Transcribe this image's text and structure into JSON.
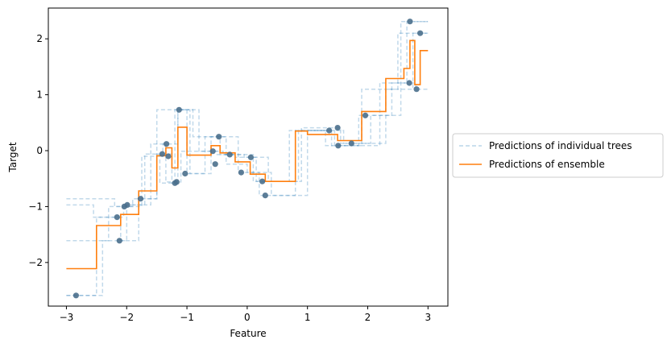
{
  "chart_data": {
    "type": "line",
    "title": "",
    "xlabel": "Feature",
    "ylabel": "Target",
    "xlim": [
      -3.3,
      3.33
    ],
    "ylim": [
      -2.78,
      2.55
    ],
    "xticks": [
      -3,
      -2,
      -1,
      0,
      1,
      2,
      3
    ],
    "yticks": [
      -2,
      -1,
      0,
      1,
      2
    ],
    "xtick_labels": [
      "−3",
      "−2",
      "−1",
      "0",
      "1",
      "2",
      "3"
    ],
    "ytick_labels": [
      "−2",
      "−1",
      "0",
      "1",
      "2"
    ],
    "grid": false,
    "legend_placement": "outside-right",
    "legend": [
      {
        "label": "Predictions of individual trees",
        "style": "dashed",
        "color": "#1f77b4"
      },
      {
        "label": "Predictions of ensemble",
        "style": "solid",
        "color": "#ff7f0e"
      }
    ],
    "colors": {
      "points": "#4a6f8c",
      "trees": "#1f77b4",
      "ensemble": "#ff7f0e"
    },
    "points": [
      [
        -2.84,
        -2.59
      ],
      [
        -2.16,
        -1.19
      ],
      [
        -2.12,
        -1.61
      ],
      [
        -2.04,
        -1.0
      ],
      [
        -1.99,
        -0.97
      ],
      [
        -1.77,
        -0.86
      ],
      [
        -1.41,
        -0.06
      ],
      [
        -1.34,
        0.12
      ],
      [
        -1.31,
        -0.1
      ],
      [
        -1.2,
        -0.58
      ],
      [
        -1.17,
        -0.56
      ],
      [
        -1.13,
        0.73
      ],
      [
        -1.03,
        -0.41
      ],
      [
        -0.57,
        -0.01
      ],
      [
        -0.53,
        -0.24
      ],
      [
        -0.47,
        0.25
      ],
      [
        -0.29,
        -0.07
      ],
      [
        -0.1,
        -0.39
      ],
      [
        0.06,
        -0.12
      ],
      [
        0.25,
        -0.55
      ],
      [
        0.3,
        -0.8
      ],
      [
        1.36,
        0.36
      ],
      [
        1.5,
        0.41
      ],
      [
        1.51,
        0.09
      ],
      [
        1.73,
        0.13
      ],
      [
        1.96,
        0.63
      ],
      [
        2.69,
        1.21
      ],
      [
        2.7,
        2.31
      ],
      [
        2.81,
        1.1
      ],
      [
        2.87,
        2.1
      ]
    ],
    "tree_predictions": [
      {
        "x": [
          -3.0,
          -2.5,
          -2.5,
          -2.1,
          -2.1,
          -1.8,
          -1.8,
          -1.5,
          -1.5,
          -1.25,
          -1.25,
          -1.15,
          -1.15,
          -0.95,
          -0.95,
          -0.6,
          -0.6,
          -0.15,
          -0.15,
          0.2,
          0.2,
          0.8,
          0.8,
          1.4,
          1.4,
          2.2,
          2.2,
          2.65,
          2.65,
          3.0
        ],
        "y": [
          -2.59,
          -2.59,
          -1.19,
          -1.19,
          -1.61,
          -1.61,
          -0.86,
          -0.86,
          -0.06,
          -0.06,
          -0.58,
          -0.58,
          0.73,
          0.73,
          -0.41,
          -0.41,
          0.25,
          0.25,
          -0.39,
          -0.39,
          -0.8,
          -0.8,
          0.36,
          0.36,
          0.09,
          0.09,
          1.21,
          1.21,
          2.31,
          2.31
        ]
      },
      {
        "x": [
          -3.0,
          -2.4,
          -2.4,
          -2.0,
          -2.0,
          -1.6,
          -1.6,
          -1.35,
          -1.35,
          -1.1,
          -1.1,
          -0.5,
          -0.5,
          -0.2,
          -0.2,
          0.15,
          0.15,
          0.9,
          0.9,
          1.55,
          1.55,
          2.3,
          2.3,
          2.75,
          2.75,
          3.0
        ],
        "y": [
          -2.59,
          -2.59,
          -1.61,
          -1.61,
          -0.97,
          -0.97,
          0.12,
          0.12,
          -0.56,
          -0.56,
          -0.01,
          -0.01,
          -0.07,
          -0.07,
          -0.12,
          -0.12,
          -0.55,
          -0.55,
          0.41,
          0.41,
          0.13,
          0.13,
          1.1,
          1.1,
          2.1,
          2.1
        ]
      },
      {
        "x": [
          -3.0,
          -2.3,
          -2.3,
          -1.9,
          -1.9,
          -1.5,
          -1.5,
          -1.0,
          -1.0,
          -0.7,
          -0.7,
          -0.35,
          -0.35,
          0.0,
          0.0,
          0.4,
          0.4,
          1.0,
          1.0,
          1.6,
          1.6,
          2.05,
          2.05,
          2.55,
          2.55,
          3.0
        ],
        "y": [
          -1.61,
          -1.61,
          -1.0,
          -1.0,
          -0.86,
          -0.86,
          0.73,
          0.73,
          -0.41,
          -0.41,
          0.25,
          0.25,
          -0.24,
          -0.24,
          -0.39,
          -0.39,
          -0.8,
          -0.8,
          0.36,
          0.36,
          0.13,
          0.13,
          0.63,
          0.63,
          2.31,
          2.31
        ]
      },
      {
        "x": [
          -3.0,
          -2.55,
          -2.55,
          -2.05,
          -2.05,
          -1.7,
          -1.7,
          -1.4,
          -1.4,
          -1.15,
          -1.15,
          -0.8,
          -0.8,
          -0.4,
          -0.4,
          -0.05,
          -0.05,
          0.35,
          0.35,
          0.85,
          0.85,
          1.45,
          1.45,
          1.85,
          1.85,
          2.4,
          2.4,
          2.8,
          2.8,
          3.0
        ],
        "y": [
          -0.97,
          -0.97,
          -1.19,
          -1.19,
          -0.97,
          -0.97,
          -0.06,
          -0.06,
          0.12,
          0.12,
          0.73,
          0.73,
          -0.01,
          -0.01,
          -0.07,
          -0.07,
          -0.12,
          -0.12,
          -0.55,
          -0.55,
          0.36,
          0.36,
          0.09,
          0.09,
          0.63,
          0.63,
          1.21,
          1.21,
          1.1,
          1.1
        ]
      },
      {
        "x": [
          -3.0,
          -2.2,
          -2.2,
          -1.75,
          -1.75,
          -1.45,
          -1.45,
          -1.2,
          -1.2,
          -0.9,
          -0.9,
          -0.45,
          -0.45,
          0.1,
          0.1,
          0.7,
          0.7,
          1.3,
          1.3,
          1.9,
          1.9,
          2.5,
          2.5,
          3.0
        ],
        "y": [
          -0.86,
          -0.86,
          -1.0,
          -1.0,
          -0.1,
          -0.1,
          -0.58,
          -0.58,
          0.73,
          0.73,
          0.25,
          0.25,
          -0.07,
          -0.07,
          -0.55,
          -0.55,
          0.36,
          0.36,
          0.09,
          0.09,
          1.1,
          1.1,
          2.1,
          2.1
        ]
      }
    ],
    "ensemble": {
      "x": [
        -3.0,
        -2.5,
        -2.5,
        -2.1,
        -2.1,
        -1.8,
        -1.8,
        -1.5,
        -1.5,
        -1.35,
        -1.35,
        -1.25,
        -1.25,
        -1.15,
        -1.15,
        -1.0,
        -1.0,
        -0.6,
        -0.6,
        -0.45,
        -0.45,
        -0.2,
        -0.2,
        0.05,
        0.05,
        0.3,
        0.3,
        0.8,
        0.8,
        1.0,
        1.0,
        1.5,
        1.5,
        1.9,
        1.9,
        2.3,
        2.3,
        2.6,
        2.6,
        2.7,
        2.7,
        2.78,
        2.78,
        2.87,
        2.87,
        3.0
      ],
      "y": [
        -2.11,
        -2.11,
        -1.34,
        -1.34,
        -1.14,
        -1.14,
        -0.72,
        -0.72,
        -0.09,
        -0.09,
        0.05,
        0.05,
        -0.31,
        -0.31,
        0.42,
        0.42,
        -0.08,
        -0.08,
        0.09,
        0.09,
        -0.04,
        -0.04,
        -0.2,
        -0.2,
        -0.42,
        -0.42,
        -0.55,
        -0.55,
        0.35,
        0.35,
        0.29,
        0.29,
        0.18,
        0.18,
        0.7,
        0.7,
        1.29,
        1.29,
        1.47,
        1.47,
        1.97,
        1.97,
        1.18,
        1.18,
        1.79,
        1.79
      ]
    }
  }
}
